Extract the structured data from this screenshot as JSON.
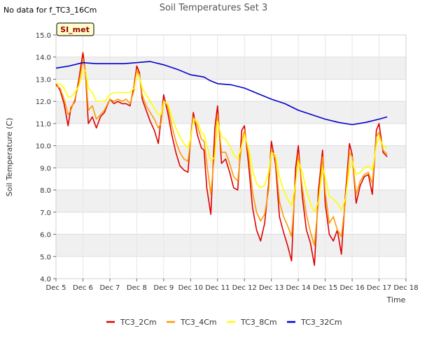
{
  "chart_data": {
    "type": "line",
    "title": "Soil Temperatures Set 3",
    "no_data_note": "No data for f_TC3_16Cm",
    "badge": "SI_met",
    "xlabel": "Time",
    "ylabel": "Soil Temperature (C)",
    "xlim": [
      5,
      18
    ],
    "ylim": [
      4.0,
      15.0
    ],
    "x_ticks": [
      5,
      6,
      7,
      8,
      9,
      10,
      11,
      12,
      13,
      14,
      15,
      16,
      17,
      18
    ],
    "x_tick_labels": [
      "Dec 5",
      "Dec 6",
      "Dec 7",
      "Dec 8",
      "Dec 9",
      "Dec 10",
      "Dec 11",
      "Dec 12",
      "Dec 13",
      "Dec 14",
      "Dec 15",
      "Dec 16",
      "Dec 17",
      "Dec 18"
    ],
    "y_ticks": [
      4.0,
      5.0,
      6.0,
      7.0,
      8.0,
      9.0,
      10.0,
      11.0,
      12.0,
      13.0,
      14.0,
      15.0
    ],
    "y_tick_labels": [
      "4.0",
      "5.0",
      "6.0",
      "7.0",
      "8.0",
      "9.0",
      "10.0",
      "11.0",
      "12.0",
      "13.0",
      "14.0",
      "15.0"
    ],
    "grid": true,
    "legend_position": "bottom-center",
    "series": [
      {
        "name": "TC3_2Cm",
        "color": "#dd0000",
        "x": [
          5.0,
          5.15,
          5.3,
          5.45,
          5.55,
          5.7,
          5.85,
          6.0,
          6.1,
          6.2,
          6.35,
          6.5,
          6.65,
          6.8,
          7.0,
          7.15,
          7.3,
          7.45,
          7.6,
          7.75,
          7.9,
          8.0,
          8.1,
          8.2,
          8.35,
          8.5,
          8.65,
          8.8,
          8.9,
          9.0,
          9.15,
          9.3,
          9.45,
          9.6,
          9.75,
          9.9,
          10.0,
          10.1,
          10.25,
          10.4,
          10.5,
          10.6,
          10.75,
          10.9,
          11.0,
          11.15,
          11.3,
          11.45,
          11.6,
          11.75,
          11.9,
          12.0,
          12.15,
          12.3,
          12.45,
          12.6,
          12.75,
          12.9,
          13.0,
          13.15,
          13.3,
          13.45,
          13.6,
          13.75,
          13.9,
          14.0,
          14.15,
          14.3,
          14.45,
          14.6,
          14.75,
          14.9,
          15.0,
          15.15,
          15.3,
          15.45,
          15.6,
          15.75,
          15.9,
          16.0,
          16.15,
          16.3,
          16.45,
          16.6,
          16.75,
          16.9,
          17.0,
          17.15,
          17.3
        ],
        "y": [
          12.8,
          12.5,
          11.9,
          10.9,
          11.7,
          12.0,
          13.0,
          14.2,
          13.2,
          11.0,
          11.3,
          10.8,
          11.3,
          11.5,
          12.1,
          11.9,
          12.0,
          11.9,
          11.9,
          11.8,
          12.7,
          13.6,
          13.3,
          12.1,
          11.6,
          11.1,
          10.7,
          10.1,
          11.2,
          12.3,
          11.5,
          10.5,
          9.7,
          9.1,
          8.9,
          8.8,
          10.3,
          11.5,
          10.5,
          9.9,
          9.8,
          8.1,
          6.9,
          10.8,
          11.8,
          9.2,
          9.4,
          8.8,
          8.1,
          8.0,
          10.7,
          10.9,
          9.2,
          7.2,
          6.2,
          5.7,
          6.5,
          8.3,
          10.2,
          9.2,
          6.8,
          6.1,
          5.5,
          4.8,
          9.0,
          10.0,
          7.7,
          6.2,
          5.6,
          4.6,
          8.0,
          9.8,
          7.4,
          6.0,
          5.7,
          6.2,
          5.1,
          7.8,
          10.1,
          9.6,
          7.4,
          8.2,
          8.6,
          8.7,
          7.8,
          10.7,
          11.0,
          9.7,
          9.5
        ]
      },
      {
        "name": "TC3_4Cm",
        "color": "#ff9900",
        "x": [
          5.0,
          5.15,
          5.3,
          5.45,
          5.55,
          5.7,
          5.85,
          6.0,
          6.1,
          6.2,
          6.35,
          6.5,
          6.65,
          6.8,
          7.0,
          7.15,
          7.3,
          7.45,
          7.6,
          7.75,
          7.9,
          8.0,
          8.1,
          8.2,
          8.35,
          8.5,
          8.65,
          8.8,
          8.9,
          9.0,
          9.15,
          9.3,
          9.45,
          9.6,
          9.75,
          9.9,
          10.0,
          10.1,
          10.25,
          10.4,
          10.5,
          10.6,
          10.75,
          10.9,
          11.0,
          11.15,
          11.3,
          11.45,
          11.6,
          11.75,
          11.9,
          12.0,
          12.15,
          12.3,
          12.45,
          12.6,
          12.75,
          12.9,
          13.0,
          13.15,
          13.3,
          13.45,
          13.6,
          13.75,
          13.9,
          14.0,
          14.15,
          14.3,
          14.45,
          14.6,
          14.75,
          14.9,
          15.0,
          15.15,
          15.3,
          15.45,
          15.6,
          15.75,
          15.9,
          16.0,
          16.15,
          16.3,
          16.45,
          16.6,
          16.75,
          16.9,
          17.0,
          17.15,
          17.3
        ],
        "y": [
          12.7,
          12.6,
          12.1,
          11.4,
          11.6,
          12.1,
          12.8,
          13.9,
          13.3,
          11.6,
          11.8,
          11.2,
          11.4,
          11.6,
          12.1,
          12.0,
          12.1,
          12.0,
          12.1,
          11.9,
          12.5,
          13.4,
          13.2,
          12.3,
          11.8,
          11.5,
          11.2,
          10.8,
          11.0,
          12.0,
          11.8,
          10.9,
          10.2,
          9.7,
          9.4,
          9.3,
          10.2,
          11.3,
          10.9,
          10.3,
          10.2,
          9.2,
          7.8,
          9.8,
          11.4,
          9.7,
          9.7,
          9.2,
          8.6,
          8.4,
          10.1,
          10.7,
          9.6,
          7.9,
          7.0,
          6.6,
          6.9,
          8.0,
          9.8,
          9.4,
          7.5,
          6.8,
          6.4,
          5.9,
          8.3,
          9.6,
          8.1,
          6.9,
          6.1,
          5.5,
          7.5,
          9.5,
          7.9,
          6.5,
          6.8,
          6.2,
          5.9,
          7.5,
          9.7,
          9.5,
          7.8,
          8.4,
          8.7,
          8.8,
          8.3,
          10.4,
          10.6,
          9.8,
          9.6
        ]
      },
      {
        "name": "TC3_8Cm",
        "color": "#ffff00",
        "x": [
          5.0,
          5.15,
          5.3,
          5.45,
          5.55,
          5.7,
          5.85,
          6.0,
          6.1,
          6.2,
          6.35,
          6.5,
          6.65,
          6.8,
          7.0,
          7.15,
          7.3,
          7.45,
          7.6,
          7.75,
          7.9,
          8.0,
          8.1,
          8.2,
          8.35,
          8.5,
          8.65,
          8.8,
          8.9,
          9.0,
          9.15,
          9.3,
          9.45,
          9.6,
          9.75,
          9.9,
          10.0,
          10.1,
          10.25,
          10.4,
          10.5,
          10.6,
          10.75,
          10.9,
          11.0,
          11.15,
          11.3,
          11.45,
          11.6,
          11.75,
          11.9,
          12.0,
          12.15,
          12.3,
          12.45,
          12.6,
          12.75,
          12.9,
          13.0,
          13.15,
          13.3,
          13.45,
          13.6,
          13.75,
          13.9,
          14.0,
          14.15,
          14.3,
          14.45,
          14.6,
          14.75,
          14.9,
          15.0,
          15.15,
          15.3,
          15.45,
          15.6,
          15.75,
          15.9,
          16.0,
          16.15,
          16.3,
          16.45,
          16.6,
          16.75,
          16.9,
          17.0,
          17.15,
          17.3
        ],
        "y": [
          12.8,
          12.8,
          12.6,
          12.2,
          12.2,
          12.4,
          12.7,
          13.4,
          13.4,
          12.6,
          12.4,
          12.0,
          12.0,
          12.0,
          12.3,
          12.4,
          12.4,
          12.4,
          12.4,
          12.4,
          12.6,
          13.2,
          13.1,
          12.6,
          12.3,
          12.0,
          11.7,
          11.4,
          11.4,
          12.0,
          11.9,
          11.3,
          10.8,
          10.4,
          10.1,
          9.9,
          10.3,
          11.2,
          11.1,
          10.6,
          10.5,
          10.0,
          9.3,
          9.5,
          11.1,
          10.4,
          10.3,
          10.0,
          9.6,
          9.4,
          10.0,
          10.5,
          9.9,
          8.9,
          8.3,
          8.1,
          8.2,
          8.8,
          9.7,
          9.6,
          8.6,
          8.0,
          7.6,
          7.3,
          8.3,
          9.3,
          8.8,
          8.0,
          7.4,
          7.0,
          7.5,
          9.0,
          8.6,
          7.7,
          7.6,
          7.4,
          7.1,
          7.6,
          9.0,
          9.3,
          8.7,
          8.8,
          9.0,
          9.1,
          8.9,
          10.0,
          10.4,
          10.0,
          9.9
        ]
      },
      {
        "name": "TC3_32Cm",
        "color": "#0000cc",
        "x": [
          5.0,
          5.5,
          6.0,
          6.5,
          7.0,
          7.5,
          8.0,
          8.5,
          9.0,
          9.5,
          10.0,
          10.5,
          10.7,
          11.0,
          11.5,
          12.0,
          12.5,
          13.0,
          13.5,
          14.0,
          14.5,
          15.0,
          15.5,
          16.0,
          16.5,
          17.0,
          17.3
        ],
        "y": [
          13.5,
          13.6,
          13.75,
          13.7,
          13.7,
          13.7,
          13.75,
          13.8,
          13.65,
          13.45,
          13.2,
          13.1,
          12.95,
          12.8,
          12.75,
          12.6,
          12.35,
          12.1,
          11.9,
          11.6,
          11.4,
          11.2,
          11.05,
          10.95,
          11.05,
          11.2,
          11.3
        ]
      }
    ]
  }
}
